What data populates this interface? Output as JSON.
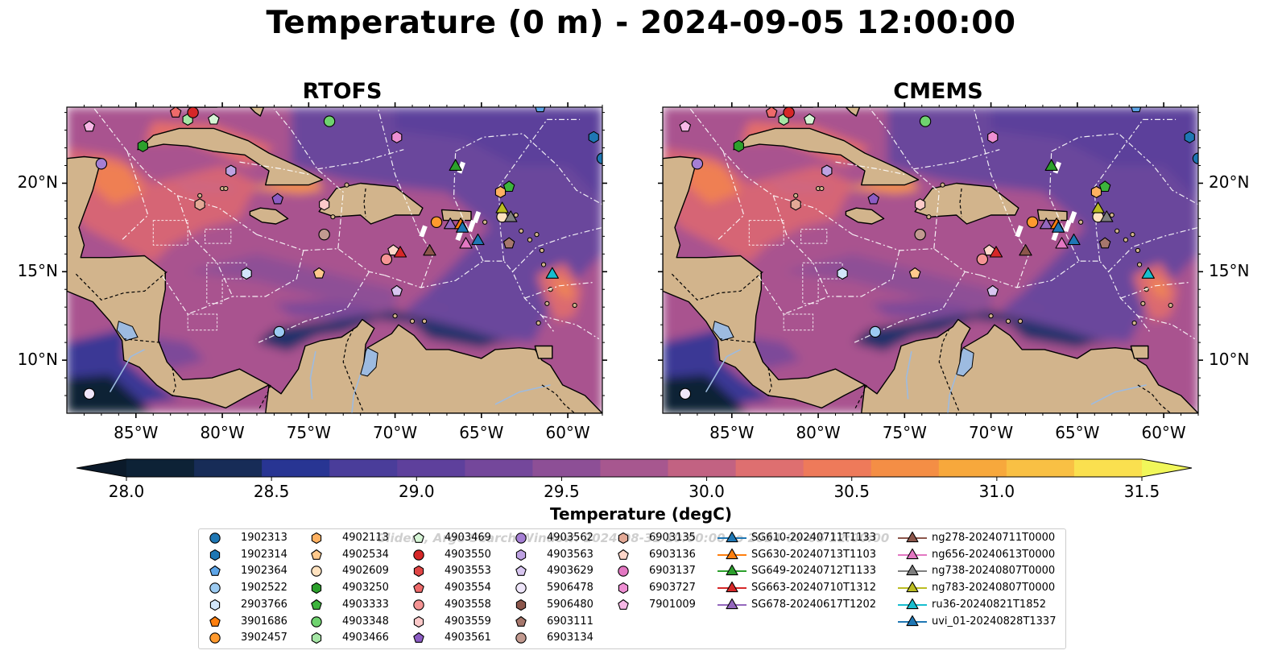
{
  "title": "Temperature (0 m) - 2024-09-05 12:00:00",
  "panels": [
    {
      "name": "RTOFS"
    },
    {
      "name": "CMEMS"
    }
  ],
  "axes": {
    "lon_range": [
      -89,
      -58
    ],
    "lat_range": [
      7,
      24.3
    ],
    "lon_ticks": [
      -85,
      -80,
      -75,
      -70,
      -65,
      -60
    ],
    "lon_labels": [
      "85°W",
      "80°W",
      "75°W",
      "70°W",
      "65°W",
      "60°W"
    ],
    "lat_ticks": [
      10,
      15,
      20
    ],
    "lat_labels": [
      "10°N",
      "15°N",
      "20°N"
    ]
  },
  "colorbar": {
    "label": "Temperature (degC)",
    "vmin": 28.0,
    "vmax": 31.5,
    "ticks": [
      "28.0",
      "28.5",
      "29.0",
      "29.5",
      "30.0",
      "30.5",
      "31.0",
      "31.5"
    ],
    "colors": [
      "#0d2236",
      "#172c57",
      "#283593",
      "#4a3d9a",
      "#5e409c",
      "#74479b",
      "#8d4f96",
      "#a7578f",
      "#c26282",
      "#de6f70",
      "#ee7a5a",
      "#f48e45",
      "#f7a83c",
      "#f9c044",
      "#fae04f"
    ],
    "under_color": "#0b1a2a",
    "over_color": "#f1f75a"
  },
  "legend_watermark": "Gliders, Argo Search Window: 2024-08-31 10:00:00 to 2024-09-05 12:00:00",
  "legend": [
    {
      "label": "1902313",
      "marker": "circle",
      "color": "#1f77b4"
    },
    {
      "label": "1902314",
      "marker": "hexagon",
      "color": "#1f77b4"
    },
    {
      "label": "1902364",
      "marker": "pentagon",
      "color": "#5da5e8"
    },
    {
      "label": "1902522",
      "marker": "circle",
      "color": "#9ccbf2"
    },
    {
      "label": "2903766",
      "marker": "hexagon",
      "color": "#d2e6fa"
    },
    {
      "label": "3901686",
      "marker": "pentagon",
      "color": "#ff7f0e"
    },
    {
      "label": "3902457",
      "marker": "circle",
      "color": "#ff9a2e"
    },
    {
      "label": "4902113",
      "marker": "hexagon",
      "color": "#ffb161"
    },
    {
      "label": "4902534",
      "marker": "pentagon",
      "color": "#ffc98c"
    },
    {
      "label": "4902609",
      "marker": "circle",
      "color": "#ffe2bf"
    },
    {
      "label": "4903250",
      "marker": "hexagon",
      "color": "#2ca02c"
    },
    {
      "label": "4903333",
      "marker": "pentagon",
      "color": "#3cb43c"
    },
    {
      "label": "4903348",
      "marker": "circle",
      "color": "#6fd36f"
    },
    {
      "label": "4903466",
      "marker": "hexagon",
      "color": "#a5e6a5"
    },
    {
      "label": "4903469",
      "marker": "pentagon",
      "color": "#d6f5d6"
    },
    {
      "label": "4903550",
      "marker": "circle",
      "color": "#d62728"
    },
    {
      "label": "4903553",
      "marker": "hexagon",
      "color": "#e04545"
    },
    {
      "label": "4903554",
      "marker": "pentagon",
      "color": "#ee6a6a"
    },
    {
      "label": "4903558",
      "marker": "circle",
      "color": "#f59494"
    },
    {
      "label": "4903559",
      "marker": "hexagon",
      "color": "#fcc9c9"
    },
    {
      "label": "4903561",
      "marker": "pentagon",
      "color": "#8c5cc4"
    },
    {
      "label": "4903562",
      "marker": "circle",
      "color": "#a57fd4"
    },
    {
      "label": "4903563",
      "marker": "hexagon",
      "color": "#bea2e2"
    },
    {
      "label": "4903629",
      "marker": "pentagon",
      "color": "#d8c6f0"
    },
    {
      "label": "5906478",
      "marker": "circle",
      "color": "#efe6fa"
    },
    {
      "label": "5906480",
      "marker": "hexagon",
      "color": "#8c564b"
    },
    {
      "label": "6903111",
      "marker": "pentagon",
      "color": "#a6776c"
    },
    {
      "label": "6903134",
      "marker": "circle",
      "color": "#c29a90"
    },
    {
      "label": "6903135",
      "marker": "hexagon",
      "color": "#e3a996"
    },
    {
      "label": "6903136",
      "marker": "pentagon",
      "color": "#ffd6c9"
    },
    {
      "label": "6903137",
      "marker": "circle",
      "color": "#e377c2"
    },
    {
      "label": "6903727",
      "marker": "hexagon",
      "color": "#ee8fd3"
    },
    {
      "label": "7901009",
      "marker": "pentagon",
      "color": "#f7b8e6"
    },
    {
      "label": "SG610-20240711T1133",
      "marker": "triangle",
      "color": "#1f77b4"
    },
    {
      "label": "SG630-20240713T1103",
      "marker": "triangle",
      "color": "#ff7f0e"
    },
    {
      "label": "SG649-20240712T1133",
      "marker": "triangle",
      "color": "#2ca02c"
    },
    {
      "label": "SG663-20240710T1312",
      "marker": "triangle",
      "color": "#d62728"
    },
    {
      "label": "SG678-20240617T1202",
      "marker": "triangle",
      "color": "#9467bd"
    },
    {
      "label": "ng278-20240711T0000",
      "marker": "triangle",
      "color": "#8c564b"
    },
    {
      "label": "ng656-20240613T0000",
      "marker": "triangle",
      "color": "#e377c2"
    },
    {
      "label": "ng738-20240807T0000",
      "marker": "triangle",
      "color": "#7f7f7f"
    },
    {
      "label": "ng783-20240807T0000",
      "marker": "triangle",
      "color": "#bcbd22"
    },
    {
      "label": "ru36-20240821T1852",
      "marker": "triangle",
      "color": "#17becf"
    },
    {
      "label": "uvi_01-20240828T1337",
      "marker": "triangle",
      "color": "#1f77b4"
    }
  ],
  "platforms": [
    {
      "id": "4903348",
      "lon": -73.8,
      "lat": 23.5
    },
    {
      "id": "4903250",
      "lon": -84.6,
      "lat": 22.1
    },
    {
      "id": "4903466",
      "lon": -82.0,
      "lat": 23.6
    },
    {
      "id": "4903469",
      "lon": -80.5,
      "lat": 23.6
    },
    {
      "id": "4903554",
      "lon": -82.7,
      "lat": 24.0
    },
    {
      "id": "7901009",
      "lon": -87.7,
      "lat": 23.2
    },
    {
      "id": "4903562",
      "lon": -87.0,
      "lat": 21.1
    },
    {
      "id": "4903563",
      "lon": -79.5,
      "lat": 20.7
    },
    {
      "id": "4903561",
      "lon": -76.8,
      "lat": 19.1
    },
    {
      "id": "6903135",
      "lon": -81.3,
      "lat": 18.8
    },
    {
      "id": "6903727",
      "lon": -69.9,
      "lat": 22.6
    },
    {
      "id": "4903559",
      "lon": -74.1,
      "lat": 18.8
    },
    {
      "id": "6903134",
      "lon": -74.1,
      "lat": 17.1
    },
    {
      "id": "3902457",
      "lon": -67.6,
      "lat": 17.8
    },
    {
      "id": "4902113",
      "lon": -63.9,
      "lat": 19.5
    },
    {
      "id": "4903333",
      "lon": -63.4,
      "lat": 19.8
    },
    {
      "id": "4902534",
      "lon": -74.4,
      "lat": 14.9
    },
    {
      "id": "2903766",
      "lon": -78.6,
      "lat": 14.9
    },
    {
      "id": "1902522",
      "lon": -76.7,
      "lat": 11.6
    },
    {
      "id": "5906478",
      "lon": -87.7,
      "lat": 8.1
    },
    {
      "id": "4903558",
      "lon": -70.5,
      "lat": 15.7
    },
    {
      "id": "6903136",
      "lon": -70.1,
      "lat": 16.2
    },
    {
      "id": "4903629",
      "lon": -69.9,
      "lat": 13.9
    },
    {
      "id": "6903111",
      "lon": -63.4,
      "lat": 16.6
    },
    {
      "id": "4902609",
      "lon": -63.8,
      "lat": 18.1
    },
    {
      "id": "1902314",
      "lon": -58.5,
      "lat": 22.6
    },
    {
      "id": "1902364",
      "lon": -61.6,
      "lat": 24.3
    },
    {
      "id": "1902313",
      "lon": -58.0,
      "lat": 21.4
    },
    {
      "id": "4903550",
      "lon": -81.7,
      "lat": 24.0
    },
    {
      "id": "SG649-20240712T1133",
      "lon": -66.5,
      "lat": 21.0
    },
    {
      "id": "SG663-20240710T1312",
      "lon": -69.7,
      "lat": 16.1
    },
    {
      "id": "ng278-20240711T0000",
      "lon": -68.0,
      "lat": 16.2
    },
    {
      "id": "SG678-20240617T1202",
      "lon": -66.8,
      "lat": 17.7
    },
    {
      "id": "SG630-20240713T1103",
      "lon": -66.2,
      "lat": 17.7
    },
    {
      "id": "uvi_01-20240828T1337",
      "lon": -66.1,
      "lat": 17.5
    },
    {
      "id": "ng656-20240613T0000",
      "lon": -65.9,
      "lat": 16.6
    },
    {
      "id": "SG610-20240711T1133",
      "lon": -65.2,
      "lat": 16.8
    },
    {
      "id": "ng783-20240807T0000",
      "lon": -63.8,
      "lat": 18.6
    },
    {
      "id": "ng738-20240807T0000",
      "lon": -63.3,
      "lat": 18.1
    },
    {
      "id": "ru36-20240821T1852",
      "lon": -60.9,
      "lat": 14.9
    }
  ]
}
